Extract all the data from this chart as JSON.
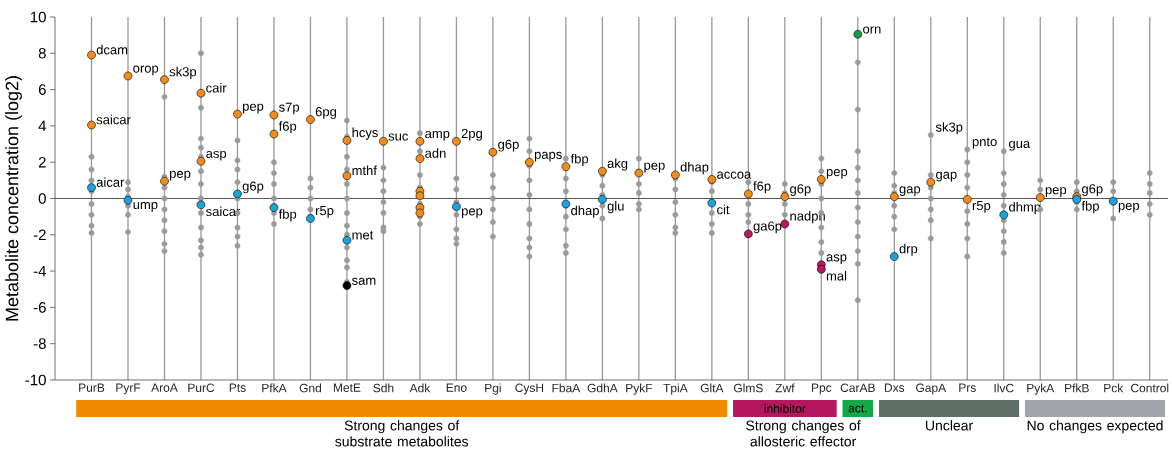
{
  "chart_data": {
    "type": "scatter",
    "ylabel": "Metabolite concentration (log2)",
    "categories": [
      "PurB",
      "PyrF",
      "AroA",
      "PurC",
      "Pts",
      "PfkA",
      "Gnd",
      "MetE",
      "Sdh",
      "Adk",
      "Eno",
      "Pgi",
      "CysH",
      "FbaA",
      "GdhA",
      "PykF",
      "TpiA",
      "GltA",
      "GlmS",
      "Zwf",
      "Ppc",
      "CarAB",
      "Dxs",
      "GapA",
      "Prs",
      "IlvC",
      "PykA",
      "PfkB",
      "Pck",
      "Control"
    ],
    "ylim": [
      -10,
      10
    ],
    "yticks": [
      -10,
      -8,
      -6,
      -4,
      -2,
      0,
      2,
      4,
      6,
      8,
      10
    ],
    "grid": "x",
    "marker": "circle",
    "series": [
      {
        "color": "#9a9a9a",
        "x": [
          "PurB",
          "PurB",
          "PurB",
          "PurB",
          "PurB",
          "PurB",
          "PurB",
          "PurB",
          "PyrF",
          "PyrF",
          "PyrF",
          "PyrF",
          "PyrF",
          "PyrF",
          "AroA",
          "AroA",
          "AroA",
          "AroA",
          "AroA",
          "AroA",
          "AroA",
          "AroA",
          "AroA",
          "PurC",
          "PurC",
          "PurC",
          "PurC",
          "PurC",
          "PurC",
          "PurC",
          "PurC",
          "PurC",
          "PurC",
          "PurC",
          "PurC",
          "PurC",
          "Pts",
          "Pts",
          "Pts",
          "Pts",
          "Pts",
          "Pts",
          "Pts",
          "Pts",
          "Pts",
          "PfkA",
          "PfkA",
          "PfkA",
          "PfkA",
          "PfkA",
          "PfkA",
          "Gnd",
          "Gnd",
          "Gnd",
          "Gnd",
          "Gnd",
          "MetE",
          "MetE",
          "MetE",
          "MetE",
          "MetE",
          "MetE",
          "MetE",
          "MetE",
          "MetE",
          "MetE",
          "MetE",
          "MetE",
          "MetE",
          "Sdh",
          "Sdh",
          "Sdh",
          "Sdh",
          "Sdh",
          "Sdh",
          "Sdh",
          "Adk",
          "Adk",
          "Adk",
          "Adk",
          "Adk",
          "Adk",
          "Adk",
          "Eno",
          "Eno",
          "Eno",
          "Eno",
          "Eno",
          "Eno",
          "Eno",
          "Pgi",
          "Pgi",
          "Pgi",
          "Pgi",
          "Pgi",
          "Pgi",
          "CysH",
          "CysH",
          "CysH",
          "CysH",
          "CysH",
          "CysH",
          "CysH",
          "CysH",
          "CysH",
          "CysH",
          "FbaA",
          "FbaA",
          "FbaA",
          "FbaA",
          "FbaA",
          "FbaA",
          "FbaA",
          "FbaA",
          "GdhA",
          "GdhA",
          "GdhA",
          "GdhA",
          "GdhA",
          "PykF",
          "PykF",
          "PykF",
          "PykF",
          "PykF",
          "TpiA",
          "TpiA",
          "TpiA",
          "TpiA",
          "TpiA",
          "TpiA",
          "GltA",
          "GltA",
          "GltA",
          "GltA",
          "GltA",
          "GlmS",
          "GlmS",
          "GlmS",
          "GlmS",
          "Zwf",
          "Zwf",
          "Zwf",
          "Zwf",
          "Ppc",
          "Ppc",
          "Ppc",
          "Ppc",
          "Ppc",
          "Ppc",
          "Ppc",
          "Ppc",
          "CarAB",
          "CarAB",
          "CarAB",
          "CarAB",
          "CarAB",
          "CarAB",
          "CarAB",
          "CarAB",
          "CarAB",
          "CarAB",
          "CarAB",
          "CarAB",
          "Dxs",
          "Dxs",
          "Dxs",
          "Dxs",
          "Dxs",
          "Dxs",
          "GapA",
          "GapA",
          "GapA",
          "GapA",
          "GapA",
          "GapA",
          "GapA",
          "Prs",
          "Prs",
          "Prs",
          "Prs",
          "Prs",
          "Prs",
          "Prs",
          "Prs",
          "IlvC",
          "IlvC",
          "IlvC",
          "IlvC",
          "IlvC",
          "IlvC",
          "IlvC",
          "IlvC",
          "IlvC",
          "PykA",
          "PykA",
          "PykA",
          "PfkB",
          "PfkB",
          "PfkB",
          "PfkB",
          "Pck",
          "Pck",
          "Pck",
          "Control",
          "Control",
          "Control",
          "Control",
          "Control"
        ],
        "values": [
          2.3,
          1.6,
          1.0,
          0.4,
          -0.3,
          -0.9,
          -1.5,
          -1.9,
          0.9,
          0.5,
          0.1,
          -0.4,
          -0.9,
          -1.85,
          5.6,
          1.2,
          0.6,
          0,
          -0.6,
          -1.2,
          -1.8,
          -2.5,
          -2.9,
          8.0,
          5.0,
          3.3,
          2.8,
          2.3,
          1.5,
          0.8,
          0,
          -0.8,
          -1.6,
          -2.3,
          -2.7,
          -3.1,
          3.2,
          2.1,
          1.6,
          0.9,
          0,
          -0.8,
          -1.6,
          -2.1,
          -2.6,
          2.0,
          1.4,
          0.8,
          0,
          -0.8,
          -1.4,
          1.1,
          0.6,
          0,
          -0.6,
          -1.0,
          4.3,
          3.4,
          2.3,
          1.6,
          0.8,
          0,
          -0.8,
          -1.5,
          -2.0,
          -2.7,
          -3.4,
          -3.8,
          -4.6,
          1.7,
          1.0,
          0.4,
          -0.2,
          -0.8,
          -1.6,
          -1.8,
          3.6,
          2.6,
          1.3,
          0.6,
          -0.3,
          -1.0,
          -1.4,
          1.1,
          0.5,
          -0.2,
          -0.9,
          -1.7,
          -2.2,
          -2.5,
          1.3,
          0.6,
          0,
          -0.6,
          -1.3,
          -2.1,
          3.3,
          2.6,
          1.8,
          1.0,
          0.2,
          -0.6,
          -1.4,
          -2.2,
          -2.7,
          -3.2,
          2.2,
          1.1,
          0.4,
          -0.4,
          -1.0,
          -1.7,
          -2.6,
          -3.0,
          1.3,
          0.7,
          0.2,
          -0.4,
          -1.1,
          2.2,
          0.8,
          0.3,
          -0.3,
          -0.6,
          1.1,
          0.5,
          -0.2,
          -0.9,
          -1.6,
          -1.9,
          0.9,
          0.4,
          -0.8,
          -1.4,
          -1.9,
          0.9,
          -0.3,
          -0.9,
          -1.3,
          0.8,
          0.3,
          -0.3,
          -0.9,
          2.2,
          1.5,
          0.8,
          0,
          -0.8,
          -1.6,
          -2.4,
          -3.0,
          7.5,
          4.9,
          2.6,
          1.7,
          1.0,
          0.3,
          -0.5,
          -1.3,
          -2.1,
          -2.9,
          -3.6,
          -5.6,
          1.4,
          0.7,
          0.3,
          -0.4,
          -1.0,
          -1.7,
          3.5,
          1.3,
          0.6,
          0,
          -0.6,
          -1.2,
          -2.2,
          2.7,
          2.0,
          1.3,
          0.6,
          -0.7,
          -1.4,
          -2.2,
          -3.2,
          2.6,
          1.4,
          0.8,
          0.2,
          -0.4,
          -1.2,
          -1.8,
          -2.4,
          -3.0,
          1.0,
          0.5,
          -0.6,
          0.9,
          0.4,
          -0.2,
          -0.6,
          0.9,
          0.4,
          -1.1,
          1.4,
          0.8,
          0.3,
          -0.3,
          -0.9
        ]
      },
      {
        "x": [
          "PurB",
          "PurB",
          "PurB",
          "PyrF",
          "PyrF",
          "AroA",
          "AroA",
          "PurC",
          "PurC",
          "PurC",
          "Pts",
          "Pts",
          "PfkA",
          "PfkA",
          "PfkA",
          "Gnd",
          "Gnd",
          "MetE",
          "MetE",
          "MetE",
          "MetE",
          "Sdh",
          "Adk",
          "Adk",
          "Adk",
          "Adk",
          "Adk",
          "Adk",
          "Eno",
          "Eno",
          "Pgi",
          "CysH",
          "FbaA",
          "FbaA",
          "GdhA",
          "GdhA",
          "PykF",
          "TpiA",
          "GltA",
          "GltA",
          "GlmS",
          "GlmS",
          "Zwf",
          "Zwf",
          "Ppc",
          "Ppc",
          "Ppc",
          "CarAB",
          "Dxs",
          "Dxs",
          "GapA",
          "Prs",
          "IlvC",
          "PykA",
          "PfkB",
          "PfkB",
          "Pck"
        ],
        "values": [
          7.9,
          4.05,
          0.6,
          6.75,
          -0.1,
          6.55,
          0.95,
          5.8,
          2.05,
          -0.35,
          4.65,
          0.25,
          4.6,
          3.55,
          -0.5,
          4.35,
          -1.1,
          3.2,
          1.25,
          -2.3,
          -4.8,
          3.15,
          3.15,
          2.2,
          0.4,
          0.15,
          -0.5,
          -0.8,
          3.15,
          -0.45,
          2.55,
          2.0,
          1.75,
          -0.3,
          1.5,
          -0.05,
          1.4,
          1.3,
          1.05,
          -0.25,
          0.25,
          -1.95,
          0.1,
          -1.4,
          1.05,
          -3.65,
          -3.9,
          9.05,
          0.1,
          -3.2,
          0.9,
          -0.05,
          -0.9,
          0.05,
          0.1,
          -0.05,
          -0.15
        ],
        "colors": [
          "#f28c1c",
          "#f28c1c",
          "#1ca3dc",
          "#f28c1c",
          "#1ca3dc",
          "#f28c1c",
          "#f28c1c",
          "#f28c1c",
          "#f28c1c",
          "#1ca3dc",
          "#f28c1c",
          "#1ca3dc",
          "#f28c1c",
          "#f28c1c",
          "#1ca3dc",
          "#f28c1c",
          "#1ca3dc",
          "#f28c1c",
          "#f28c1c",
          "#1ca3dc",
          "#000000",
          "#f28c1c",
          "#f28c1c",
          "#f28c1c",
          "#f28c1c",
          "#f28c1c",
          "#f28c1c",
          "#f28c1c",
          "#f28c1c",
          "#1ca3dc",
          "#f28c1c",
          "#f28c1c",
          "#f28c1c",
          "#1ca3dc",
          "#f28c1c",
          "#1ca3dc",
          "#f28c1c",
          "#f28c1c",
          "#f28c1c",
          "#1ca3dc",
          "#f28c1c",
          "#b8185e",
          "#f28c1c",
          "#b8185e",
          "#f28c1c",
          "#b8185e",
          "#b8185e",
          "#1a9a4a",
          "#f28c1c",
          "#1ca3dc",
          "#f28c1c",
          "#f28c1c",
          "#1ca3dc",
          "#f28c1c",
          "#f28c1c",
          "#1ca3dc",
          "#1ca3dc"
        ]
      }
    ],
    "ref_lines": [
      {
        "axis": "y",
        "value": 0,
        "color": "#555555"
      }
    ],
    "annotations": [
      {
        "text": "dcam",
        "x": "PurB",
        "y": 7.9
      },
      {
        "text": "saicar",
        "x": "PurB",
        "y": 4.05
      },
      {
        "text": "aicar",
        "x": "PurB",
        "y": 0.6
      },
      {
        "text": "orop",
        "x": "PyrF",
        "y": 6.75
      },
      {
        "text": "ump",
        "x": "PyrF",
        "y": -0.1
      },
      {
        "text": "sk3p",
        "x": "AroA",
        "y": 6.55
      },
      {
        "text": "pep",
        "x": "AroA",
        "y": 0.95
      },
      {
        "text": "cair",
        "x": "PurC",
        "y": 5.8
      },
      {
        "text": "asp",
        "x": "PurC",
        "y": 2.05
      },
      {
        "text": "saicar",
        "x": "PurC",
        "y": -0.35
      },
      {
        "text": "pep",
        "x": "Pts",
        "y": 4.65
      },
      {
        "text": "g6p",
        "x": "Pts",
        "y": 0.25
      },
      {
        "text": "s7p",
        "x": "PfkA",
        "y": 4.6
      },
      {
        "text": "f6p",
        "x": "PfkA",
        "y": 3.55
      },
      {
        "text": "fbp",
        "x": "PfkA",
        "y": -0.5
      },
      {
        "text": "6pg",
        "x": "Gnd",
        "y": 4.35
      },
      {
        "text": "r5p",
        "x": "Gnd",
        "y": -1.1
      },
      {
        "text": "hcys",
        "x": "MetE",
        "y": 3.2
      },
      {
        "text": "mthf",
        "x": "MetE",
        "y": 1.25
      },
      {
        "text": "met",
        "x": "MetE",
        "y": -2.3
      },
      {
        "text": "sam",
        "x": "MetE",
        "y": -4.8
      },
      {
        "text": "suc",
        "x": "Sdh",
        "y": 3.15
      },
      {
        "text": "amp",
        "x": "Adk",
        "y": 3.15
      },
      {
        "text": "adn",
        "x": "Adk",
        "y": 2.2
      },
      {
        "text": "2pg",
        "x": "Eno",
        "y": 3.15
      },
      {
        "text": "pep",
        "x": "Eno",
        "y": -0.45
      },
      {
        "text": "g6p",
        "x": "Pgi",
        "y": 2.55
      },
      {
        "text": "paps",
        "x": "CysH",
        "y": 2.0
      },
      {
        "text": "fbp",
        "x": "FbaA",
        "y": 1.75
      },
      {
        "text": "dhap",
        "x": "FbaA",
        "y": -0.3
      },
      {
        "text": "akg",
        "x": "GdhA",
        "y": 1.5
      },
      {
        "text": "glu",
        "x": "GdhA",
        "y": -0.05
      },
      {
        "text": "pep",
        "x": "PykF",
        "y": 1.4
      },
      {
        "text": "dhap",
        "x": "TpiA",
        "y": 1.3
      },
      {
        "text": "accoa",
        "x": "GltA",
        "y": 1.05
      },
      {
        "text": "cit",
        "x": "GltA",
        "y": -0.25
      },
      {
        "text": "f6p",
        "x": "GlmS",
        "y": 0.25
      },
      {
        "text": "ga6p",
        "x": "GlmS",
        "y": -1.95
      },
      {
        "text": "g6p",
        "x": "Zwf",
        "y": 0.1
      },
      {
        "text": "nadph",
        "x": "Zwf",
        "y": -1.4
      },
      {
        "text": "pep",
        "x": "Ppc",
        "y": 1.05
      },
      {
        "text": "asp",
        "x": "Ppc",
        "y": -3.65
      },
      {
        "text": "mal",
        "x": "Ppc",
        "y": -3.9
      },
      {
        "text": "orn",
        "x": "CarAB",
        "y": 9.05
      },
      {
        "text": "gap",
        "x": "Dxs",
        "y": 0.1
      },
      {
        "text": "drp",
        "x": "Dxs",
        "y": -3.2
      },
      {
        "text": "sk3p",
        "x": "GapA",
        "y": 3.5
      },
      {
        "text": "gap",
        "x": "GapA",
        "y": 0.9
      },
      {
        "text": "pnto",
        "x": "Prs",
        "y": 2.7
      },
      {
        "text": "r5p",
        "x": "Prs",
        "y": -0.05
      },
      {
        "text": "gua",
        "x": "IlvC",
        "y": 2.6
      },
      {
        "text": "dhmp",
        "x": "IlvC",
        "y": -0.9
      },
      {
        "text": "pep",
        "x": "PykA",
        "y": 0.05
      },
      {
        "text": "g6p",
        "x": "PfkB",
        "y": 0.1
      },
      {
        "text": "fbp",
        "x": "PfkB",
        "y": -0.05
      },
      {
        "text": "pep",
        "x": "Pck",
        "y": -0.15
      },
      "inhibitor",
      "act.",
      "Strong changes of substrate metabolites",
      "Strong changes of allosteric effector",
      "Unclear",
      "No changes expected"
    ]
  }
}
